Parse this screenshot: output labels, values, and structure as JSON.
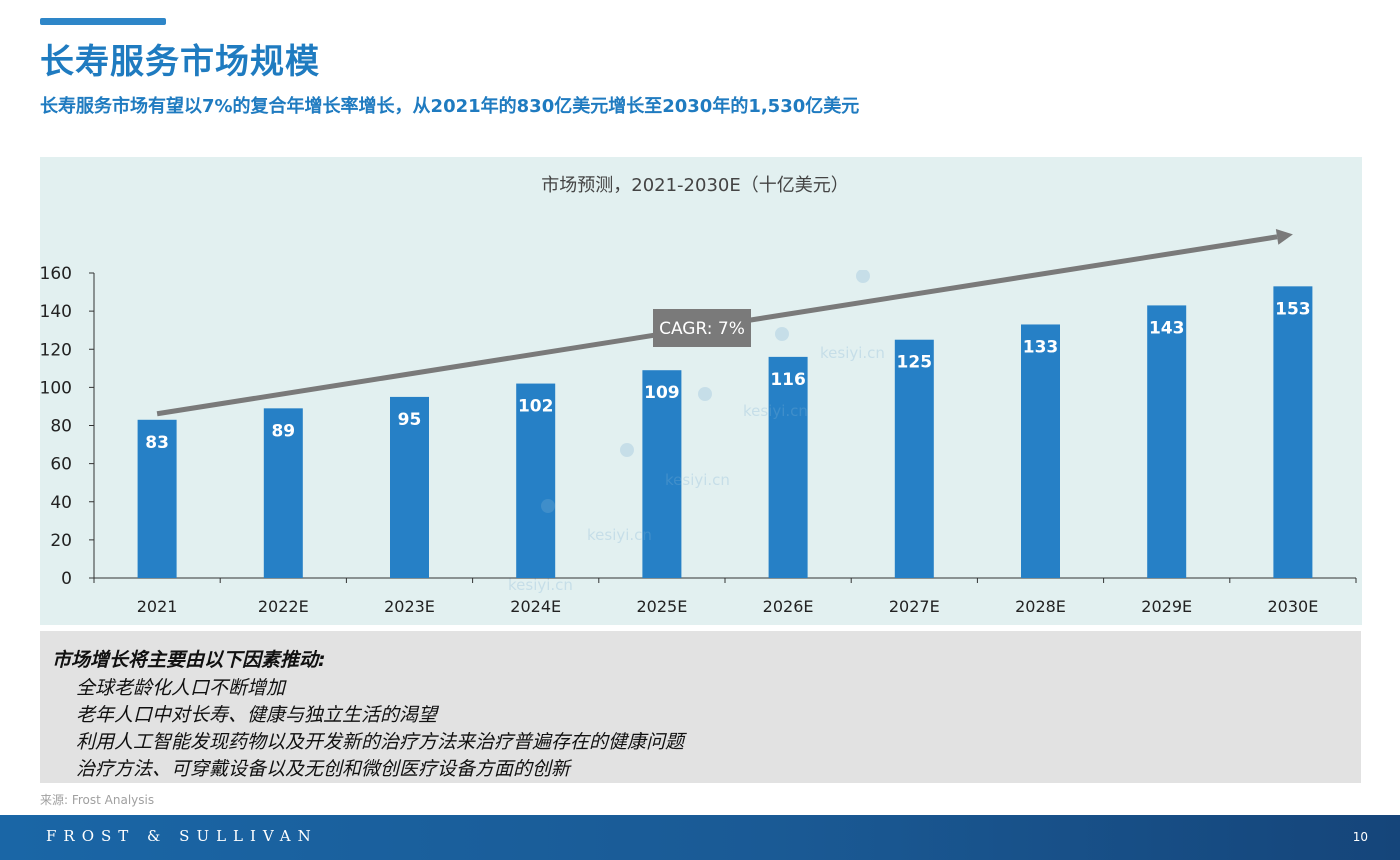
{
  "page": {
    "title": "长寿服务市场规模",
    "subtitle": "长寿服务市场有望以7%的复合年增长率增长，从2021年的830亿美元增长至2030年的1,530亿美元"
  },
  "chart_data": {
    "type": "bar",
    "title": "市场预测，2021-2030E（十亿美元）",
    "categories": [
      "2021",
      "2022E",
      "2023E",
      "2024E",
      "2025E",
      "2026E",
      "2027E",
      "2028E",
      "2029E",
      "2030E"
    ],
    "values": [
      83,
      89,
      95,
      102,
      109,
      116,
      125,
      133,
      143,
      153
    ],
    "ylim": [
      0,
      160
    ],
    "yticks": [
      0,
      20,
      40,
      60,
      80,
      100,
      120,
      140,
      160
    ],
    "grid": false,
    "bar_color": "#2680c6",
    "annotation": {
      "label": "CAGR: 7%",
      "color": "#7a7a7a"
    }
  },
  "drivers": {
    "heading": "市场增长将主要由以下因素推动:",
    "items": [
      "全球老龄化人口不断增加",
      "老年人口中对长寿、健康与独立生活的渴望",
      "利用人工智能发现药物以及开发新的治疗方法来治疗普遍存在的健康问题",
      "治疗方法、可穿戴设备以及无创和微创医疗设备方面的创新"
    ]
  },
  "source": "来源: Frost Analysis",
  "footer": {
    "logo": "FROST & SULLIVAN",
    "page_number": "10"
  },
  "watermark": {
    "text": "kesiyi.cn"
  }
}
